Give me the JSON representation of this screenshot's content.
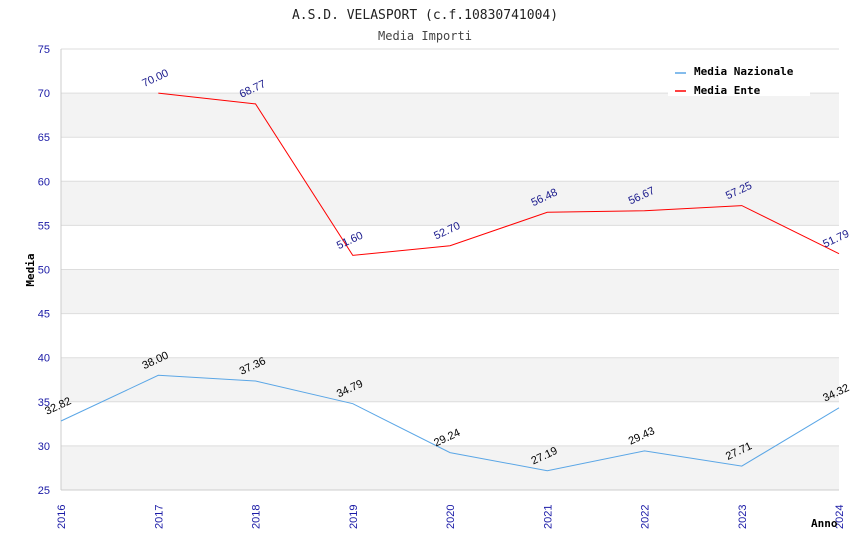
{
  "chart_data": {
    "type": "line",
    "title": "A.S.D. VELASPORT (c.f.10830741004)",
    "subtitle": "Media Importi",
    "xlabel": "Anno",
    "ylabel": "Media",
    "ylim": [
      25,
      75
    ],
    "yticks": [
      25,
      30,
      35,
      40,
      45,
      50,
      55,
      60,
      65,
      70,
      75
    ],
    "categories": [
      "2016",
      "2017",
      "2018",
      "2019",
      "2020",
      "2021",
      "2022",
      "2023",
      "2024"
    ],
    "legend_position": "top-right",
    "series": [
      {
        "name": "Media Nazionale",
        "color": "#5aa6e6",
        "label_color": "#000000",
        "values": [
          32.82,
          38.0,
          37.36,
          34.79,
          29.24,
          27.19,
          29.43,
          27.71,
          34.32
        ],
        "labels": [
          "32.82",
          "38.00",
          "37.36",
          "34.79",
          "29.24",
          "27.19",
          "29.43",
          "27.71",
          "34.32"
        ]
      },
      {
        "name": "Media Ente",
        "color": "#ff0000",
        "label_color": "#1a1a8c",
        "values": [
          null,
          70.0,
          68.77,
          51.6,
          52.7,
          56.48,
          56.67,
          57.25,
          51.79
        ],
        "labels": [
          null,
          "70.00",
          "68.77",
          "51.60",
          "52.70",
          "56.48",
          "56.67",
          "57.25",
          "51.79"
        ]
      }
    ]
  }
}
